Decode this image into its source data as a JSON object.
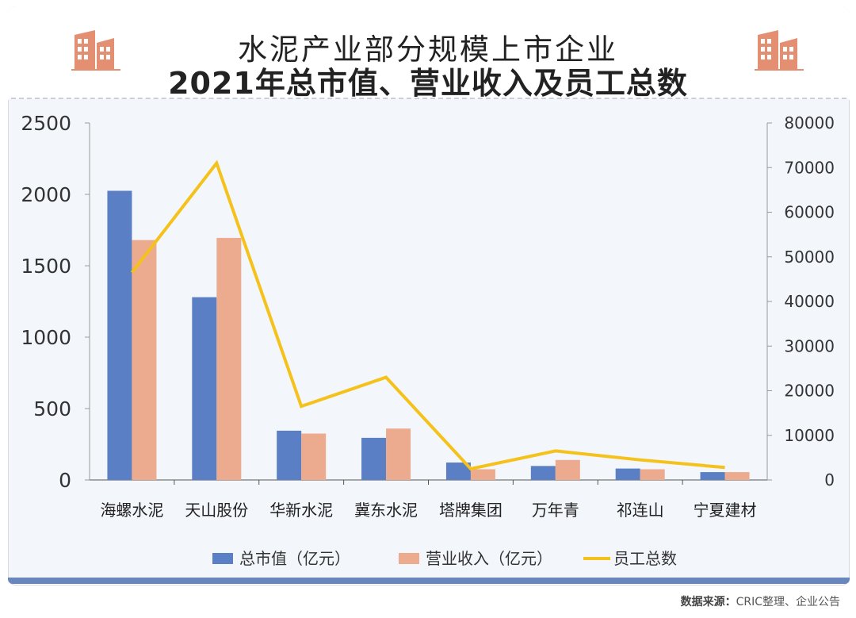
{
  "header": {
    "title_line1": "水泥产业部分规模上市企业",
    "title_line2": "2021年总市值、营业收入及员工总数"
  },
  "source": {
    "label": "数据来源：",
    "text": "CRIC整理、企业公告"
  },
  "colors": {
    "market_cap": "#5b7fc4",
    "revenue": "#ecab8e",
    "employees": "#f4c21b",
    "bottom_bar": "#6a87bd"
  },
  "chart_data": {
    "type": "bar",
    "categories": [
      "海螺水泥",
      "天山股份",
      "华新水泥",
      "冀东水泥",
      "塔牌集团",
      "万年青",
      "祁连山",
      "宁夏建材"
    ],
    "series": [
      {
        "name": "总市值（亿元）",
        "type": "bar",
        "axis": "left",
        "values": [
          2025,
          1280,
          345,
          295,
          122,
          98,
          80,
          55
        ]
      },
      {
        "name": "营业收入（亿元）",
        "type": "bar",
        "axis": "left",
        "values": [
          1680,
          1695,
          325,
          360,
          75,
          140,
          75,
          55
        ]
      },
      {
        "name": "员工总数",
        "type": "line",
        "axis": "right",
        "values": [
          46500,
          71000,
          16500,
          23000,
          2500,
          6500,
          4500,
          2800
        ]
      }
    ],
    "y_left": {
      "min": 0,
      "max": 2500,
      "ticks": [
        0,
        500,
        1000,
        1500,
        2000,
        2500
      ]
    },
    "y_right": {
      "min": 0,
      "max": 80000,
      "ticks": [
        0,
        10000,
        20000,
        30000,
        40000,
        50000,
        60000,
        70000,
        80000
      ]
    },
    "legend_position": "bottom",
    "grid": false
  }
}
